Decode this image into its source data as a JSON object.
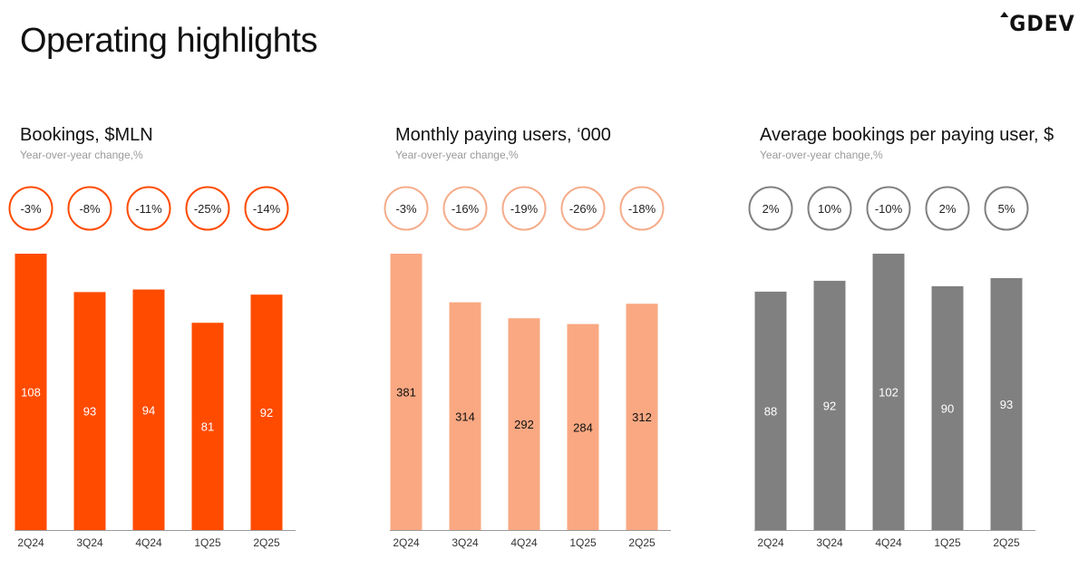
{
  "page": {
    "title": "Operating highlights",
    "logo": "GDEV"
  },
  "chart_data": [
    {
      "type": "bar",
      "title": "Bookings, $MLN",
      "subtitle": "Year-over-year change,%",
      "categories": [
        "2Q24",
        "3Q24",
        "4Q24",
        "1Q25",
        "2Q25"
      ],
      "values": [
        108,
        93,
        94,
        81,
        92
      ],
      "yoy_change": [
        "-3%",
        "-8%",
        "-11%",
        "-25%",
        "-14%"
      ],
      "ylim": [
        0,
        108
      ],
      "bar_color": "#ff4b00",
      "circle_color": "#ff4b00",
      "label_color": "#ffffff"
    },
    {
      "type": "bar",
      "title": "Monthly paying users, ‘000",
      "subtitle": "Year-over-year change,%",
      "categories": [
        "2Q24",
        "3Q24",
        "4Q24",
        "1Q25",
        "2Q25"
      ],
      "values": [
        381,
        314,
        292,
        284,
        312
      ],
      "yoy_change": [
        "-3%",
        "-16%",
        "-19%",
        "-26%",
        "-18%"
      ],
      "ylim": [
        0,
        381
      ],
      "bar_color": "#f9a882",
      "circle_color": "#f5ac8a",
      "label_color": "#111111"
    },
    {
      "type": "bar",
      "title": "Average bookings per paying user, $",
      "subtitle": "Year-over-year change,%",
      "categories": [
        "2Q24",
        "3Q24",
        "4Q24",
        "1Q25",
        "2Q25"
      ],
      "values": [
        88,
        92,
        102,
        90,
        93
      ],
      "yoy_change": [
        "2%",
        "10%",
        "-10%",
        "2%",
        "5%"
      ],
      "ylim": [
        0,
        102
      ],
      "bar_color": "#808080",
      "circle_color": "#808080",
      "label_color": "#ffffff"
    }
  ]
}
